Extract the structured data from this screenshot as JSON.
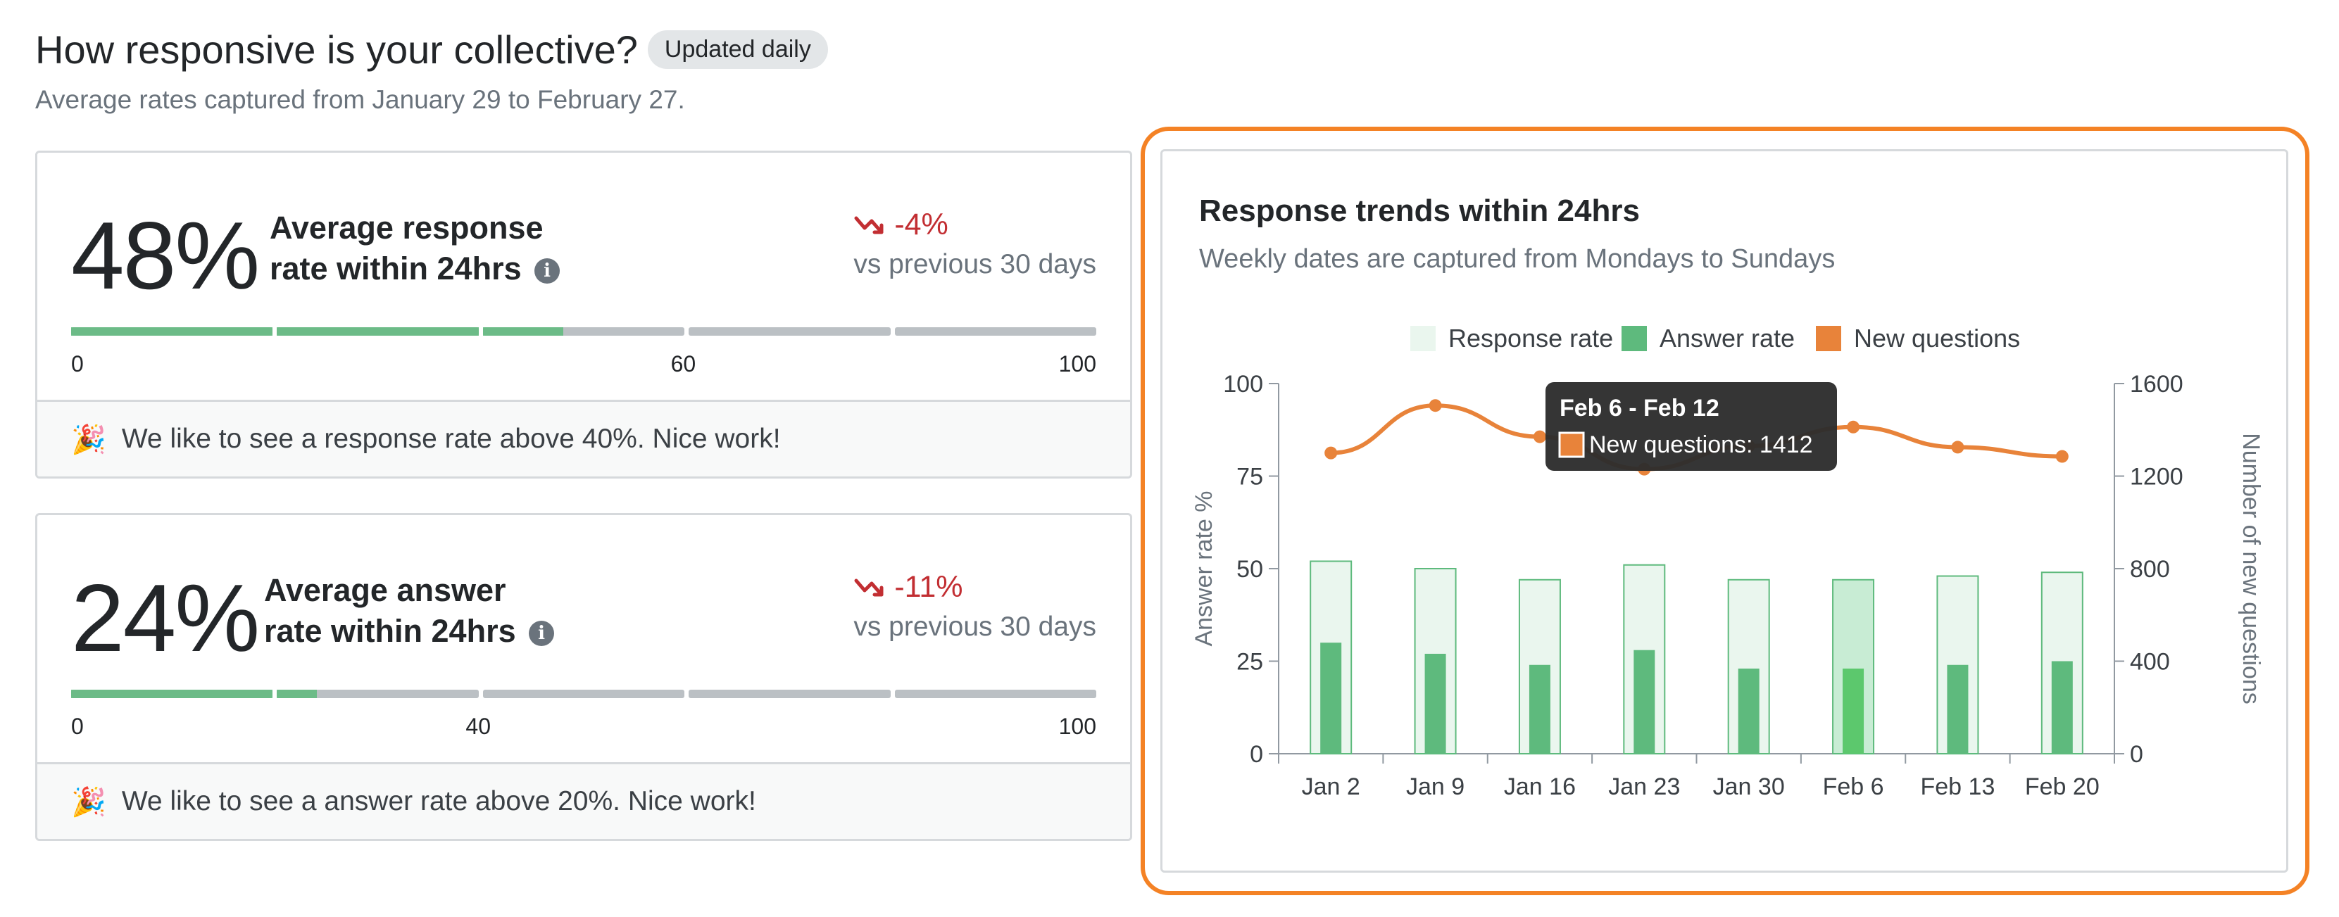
{
  "header": {
    "title": "How responsive is your collective?",
    "badge": "Updated daily",
    "subtitle": "Average rates captured from January 29 to February 27."
  },
  "cards": [
    {
      "value": "48%",
      "label": "Average response rate within 24hrs",
      "info_icon": "info-icon",
      "delta": "-4%",
      "delta_icon": "trending-down-icon",
      "comparison": "vs previous 30 days",
      "progress": 48,
      "target": 60,
      "ticks": [
        "0",
        "60",
        "100"
      ],
      "footer_icon": "party-popper-icon",
      "footer": "We like to see a response rate above 40%. Nice work!"
    },
    {
      "value": "24%",
      "label": "Average answer rate within 24hrs",
      "info_icon": "info-icon",
      "delta": "-11%",
      "delta_icon": "trending-down-icon",
      "comparison": "vs previous 30 days",
      "progress": 24,
      "target": 40,
      "ticks": [
        "0",
        "40",
        "100"
      ],
      "footer_icon": "party-popper-icon",
      "footer": "We like to see a answer rate above 20%. Nice work!"
    }
  ],
  "chart_panel": {
    "title": "Response trends within 24hrs",
    "subtitle": "Weekly dates are captured from Mondays to Sundays"
  },
  "chart_data": {
    "type": "bar",
    "categories": [
      "Jan 2",
      "Jan 9",
      "Jan 16",
      "Jan 23",
      "Jan 30",
      "Feb 6",
      "Feb 13",
      "Feb 20"
    ],
    "series": [
      {
        "name": "Response rate",
        "type": "bar",
        "axis": "left",
        "values": [
          52,
          50,
          47,
          51,
          47,
          47,
          48,
          49
        ],
        "color": "#eaf6ee",
        "stroke": "#5eba7d"
      },
      {
        "name": "Answer rate",
        "type": "bar",
        "axis": "left",
        "values": [
          30,
          27,
          24,
          28,
          23,
          23,
          24,
          25
        ],
        "color": "#5eba7d"
      },
      {
        "name": "New questions",
        "type": "line",
        "axis": "right",
        "values": [
          1300,
          1505,
          1370,
          1230,
          1330,
          1412,
          1325,
          1285
        ],
        "color": "#e8833a"
      }
    ],
    "ylabel": "Answer rate %",
    "y2label": "Number of new questions",
    "yticks": [
      "0",
      "25",
      "50",
      "75",
      "100"
    ],
    "y2ticks": [
      "0",
      "400",
      "800",
      "1200",
      "1600"
    ],
    "ylim": [
      0,
      100
    ],
    "y2lim": [
      0,
      1600
    ],
    "legend": "top-center",
    "highlighted_index": 5,
    "highlight_color": "#c8ecd4",
    "highlight_bar_color": "#5cc86d",
    "tooltip": {
      "title": "Feb 6 - Feb 12",
      "text": "New questions: 1412"
    }
  }
}
